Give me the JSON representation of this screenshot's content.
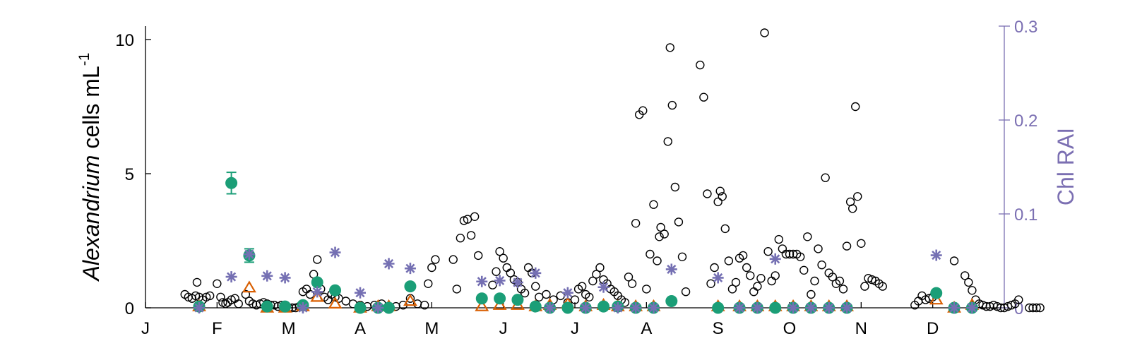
{
  "chart_data": {
    "type": "scatter",
    "title": "",
    "xlabel": "",
    "ylabel": {
      "italic": "Alexandrium",
      "normal": " cells mL",
      "sup": "-1"
    },
    "ylabel_right": "Chl RAI",
    "x_ticks": [
      "J",
      "F",
      "M",
      "A",
      "M",
      "J",
      "J",
      "A",
      "S",
      "O",
      "N",
      "D"
    ],
    "xlim": [
      0,
      12
    ],
    "ylim": [
      0,
      10.5
    ],
    "ylim_right": [
      0,
      0.3
    ],
    "yticks_left": [
      0,
      5,
      10
    ],
    "yticks_right": [
      0,
      0.1,
      0.2,
      0.3
    ],
    "ytick_labels_right": [
      "0",
      "0.1",
      "0.2",
      "0.3"
    ],
    "colors": {
      "circles": "#000000",
      "triangles": "#d95f02",
      "green": "#1b9e77",
      "asterisks": "#7570b3",
      "right_axis": "#7b6fb2"
    },
    "series": [
      {
        "marker": "open-circle",
        "axis": "left",
        "points": [
          [
            0.55,
            0.5
          ],
          [
            0.6,
            0.4
          ],
          [
            0.65,
            0.35
          ],
          [
            0.7,
            0.45
          ],
          [
            0.72,
            0.95
          ],
          [
            0.75,
            0.4
          ],
          [
            0.8,
            0.3
          ],
          [
            0.85,
            0.4
          ],
          [
            0.9,
            0.45
          ],
          [
            1.0,
            0.9
          ],
          [
            1.05,
            0.4
          ],
          [
            1.08,
            0.2
          ],
          [
            1.12,
            0.15
          ],
          [
            1.15,
            0.2
          ],
          [
            1.2,
            0.3
          ],
          [
            1.25,
            0.35
          ],
          [
            1.3,
            0.15
          ],
          [
            1.4,
            0.5
          ],
          [
            1.45,
            0.25
          ],
          [
            1.5,
            0.15
          ],
          [
            1.55,
            0.1
          ],
          [
            1.6,
            0.15
          ],
          [
            1.65,
            0.2
          ],
          [
            1.7,
            0.15
          ],
          [
            1.75,
            0.1
          ],
          [
            1.8,
            0.1
          ],
          [
            1.85,
            0.05
          ],
          [
            1.9,
            0.1
          ],
          [
            1.95,
            0.05
          ],
          [
            2.0,
            0.0
          ],
          [
            2.05,
            0.0
          ],
          [
            2.1,
            0.0
          ],
          [
            2.15,
            0.05
          ],
          [
            2.2,
            0.6
          ],
          [
            2.25,
            0.7
          ],
          [
            2.3,
            0.5
          ],
          [
            2.35,
            1.25
          ],
          [
            2.4,
            1.8
          ],
          [
            2.45,
            0.7
          ],
          [
            2.5,
            0.4
          ],
          [
            2.55,
            0.3
          ],
          [
            2.6,
            0.5
          ],
          [
            2.65,
            0.4
          ],
          [
            2.7,
            0.35
          ],
          [
            2.8,
            0.25
          ],
          [
            2.9,
            0.15
          ],
          [
            3.0,
            0.1
          ],
          [
            3.1,
            0.05
          ],
          [
            3.2,
            0.1
          ],
          [
            3.3,
            0.15
          ],
          [
            3.4,
            0.05
          ],
          [
            3.5,
            0.05
          ],
          [
            3.6,
            0.1
          ],
          [
            3.7,
            0.35
          ],
          [
            3.8,
            0.15
          ],
          [
            3.9,
            0.1
          ],
          [
            3.95,
            0.9
          ],
          [
            4.0,
            1.5
          ],
          [
            4.05,
            1.8
          ],
          [
            4.3,
            1.8
          ],
          [
            4.35,
            0.7
          ],
          [
            4.4,
            2.6
          ],
          [
            4.45,
            3.25
          ],
          [
            4.5,
            3.3
          ],
          [
            4.55,
            2.7
          ],
          [
            4.6,
            3.4
          ],
          [
            4.65,
            1.95
          ],
          [
            4.7,
            0.4
          ],
          [
            4.85,
            0.85
          ],
          [
            4.9,
            1.35
          ],
          [
            4.95,
            2.1
          ],
          [
            5.0,
            1.85
          ],
          [
            5.05,
            1.5
          ],
          [
            5.1,
            1.3
          ],
          [
            5.15,
            1.05
          ],
          [
            5.2,
            0.95
          ],
          [
            5.25,
            0.7
          ],
          [
            5.3,
            0.55
          ],
          [
            5.35,
            1.5
          ],
          [
            5.4,
            1.3
          ],
          [
            5.45,
            0.8
          ],
          [
            5.5,
            0.4
          ],
          [
            5.6,
            0.5
          ],
          [
            5.7,
            0.3
          ],
          [
            5.8,
            0.45
          ],
          [
            5.9,
            0.2
          ],
          [
            6.0,
            0.3
          ],
          [
            6.05,
            0.7
          ],
          [
            6.1,
            0.8
          ],
          [
            6.15,
            0.5
          ],
          [
            6.2,
            0.4
          ],
          [
            6.25,
            1.0
          ],
          [
            6.3,
            1.25
          ],
          [
            6.35,
            1.5
          ],
          [
            6.4,
            1.05
          ],
          [
            6.45,
            0.9
          ],
          [
            6.5,
            0.7
          ],
          [
            6.55,
            0.6
          ],
          [
            6.6,
            0.45
          ],
          [
            6.65,
            0.3
          ],
          [
            6.7,
            0.2
          ],
          [
            6.75,
            1.15
          ],
          [
            6.8,
            0.9
          ],
          [
            6.85,
            3.15
          ],
          [
            6.9,
            7.2
          ],
          [
            6.95,
            7.35
          ],
          [
            7.0,
            0.7
          ],
          [
            7.05,
            2.0
          ],
          [
            7.1,
            3.85
          ],
          [
            7.15,
            1.75
          ],
          [
            7.18,
            2.65
          ],
          [
            7.2,
            3.0
          ],
          [
            7.25,
            2.75
          ],
          [
            7.3,
            6.2
          ],
          [
            7.33,
            9.7
          ],
          [
            7.36,
            7.55
          ],
          [
            7.4,
            4.5
          ],
          [
            7.45,
            3.2
          ],
          [
            7.5,
            1.9
          ],
          [
            7.55,
            0.6
          ],
          [
            7.75,
            9.05
          ],
          [
            7.8,
            7.85
          ],
          [
            7.85,
            4.25
          ],
          [
            7.9,
            0.9
          ],
          [
            7.95,
            1.5
          ],
          [
            8.0,
            3.95
          ],
          [
            8.03,
            4.35
          ],
          [
            8.06,
            4.15
          ],
          [
            8.1,
            2.95
          ],
          [
            8.15,
            1.75
          ],
          [
            8.2,
            0.7
          ],
          [
            8.25,
            0.95
          ],
          [
            8.3,
            1.85
          ],
          [
            8.35,
            1.95
          ],
          [
            8.4,
            1.5
          ],
          [
            8.45,
            1.2
          ],
          [
            8.5,
            0.6
          ],
          [
            8.55,
            0.8
          ],
          [
            8.6,
            1.1
          ],
          [
            8.65,
            10.25
          ],
          [
            8.7,
            2.1
          ],
          [
            8.75,
            1.0
          ],
          [
            8.8,
            1.2
          ],
          [
            8.85,
            2.55
          ],
          [
            8.9,
            2.2
          ],
          [
            8.95,
            2.0
          ],
          [
            9.0,
            2.0
          ],
          [
            9.05,
            2.0
          ],
          [
            9.1,
            2.0
          ],
          [
            9.15,
            1.9
          ],
          [
            9.2,
            1.4
          ],
          [
            9.25,
            2.65
          ],
          [
            9.3,
            0.5
          ],
          [
            9.35,
            1.0
          ],
          [
            9.4,
            2.2
          ],
          [
            9.45,
            1.6
          ],
          [
            9.5,
            4.85
          ],
          [
            9.55,
            1.3
          ],
          [
            9.6,
            1.15
          ],
          [
            9.65,
            0.9
          ],
          [
            9.7,
            1.0
          ],
          [
            9.75,
            0.7
          ],
          [
            9.8,
            2.3
          ],
          [
            9.85,
            3.95
          ],
          [
            9.88,
            3.7
          ],
          [
            9.92,
            7.5
          ],
          [
            9.95,
            4.15
          ],
          [
            10.0,
            2.4
          ],
          [
            10.05,
            0.8
          ],
          [
            10.1,
            1.1
          ],
          [
            10.15,
            1.05
          ],
          [
            10.2,
            1.0
          ],
          [
            10.25,
            0.9
          ],
          [
            10.3,
            0.8
          ],
          [
            10.75,
            0.1
          ],
          [
            10.8,
            0.25
          ],
          [
            10.85,
            0.45
          ],
          [
            10.9,
            0.3
          ],
          [
            10.95,
            0.35
          ],
          [
            11.0,
            0.4
          ],
          [
            11.3,
            1.75
          ],
          [
            11.45,
            1.2
          ],
          [
            11.5,
            0.95
          ],
          [
            11.55,
            0.65
          ],
          [
            11.6,
            0.3
          ],
          [
            11.65,
            0.15
          ],
          [
            11.7,
            0.1
          ],
          [
            11.75,
            0.05
          ],
          [
            11.8,
            0.05
          ],
          [
            11.85,
            0.1
          ],
          [
            11.9,
            0.05
          ],
          [
            11.95,
            0.0
          ],
          [
            12.0,
            0.0
          ],
          [
            12.05,
            0.05
          ],
          [
            12.1,
            0.1
          ],
          [
            12.15,
            0.15
          ],
          [
            12.2,
            0.3
          ],
          [
            12.35,
            0.0
          ],
          [
            12.4,
            0.0
          ],
          [
            12.45,
            0.0
          ],
          [
            12.5,
            0.0
          ]
        ]
      },
      {
        "marker": "open-triangle",
        "axis": "left",
        "points": [
          [
            0.75,
            0.05
          ],
          [
            1.45,
            0.75
          ],
          [
            1.7,
            0.0
          ],
          [
            1.95,
            0.0
          ],
          [
            2.2,
            0.05
          ],
          [
            2.4,
            0.4
          ],
          [
            2.65,
            0.15
          ],
          [
            3.0,
            0.0
          ],
          [
            3.25,
            0.05
          ],
          [
            3.4,
            0.05
          ],
          [
            3.7,
            0.25
          ],
          [
            4.7,
            0.05
          ],
          [
            4.95,
            0.1
          ],
          [
            5.2,
            0.1
          ],
          [
            5.45,
            0.05
          ],
          [
            5.65,
            0.1
          ],
          [
            5.9,
            0.15
          ],
          [
            6.15,
            0.05
          ],
          [
            6.4,
            0.1
          ],
          [
            6.6,
            0.05
          ],
          [
            6.85,
            0.05
          ],
          [
            7.1,
            0.05
          ],
          [
            8.0,
            0.05
          ],
          [
            8.3,
            0.05
          ],
          [
            8.55,
            0.05
          ],
          [
            8.8,
            0.05
          ],
          [
            9.05,
            0.05
          ],
          [
            9.3,
            0.05
          ],
          [
            9.55,
            0.05
          ],
          [
            9.8,
            0.05
          ],
          [
            11.05,
            0.3
          ],
          [
            11.3,
            0.0
          ],
          [
            11.55,
            0.1
          ]
        ]
      },
      {
        "marker": "filled-circle",
        "axis": "left",
        "points": [
          [
            0.75,
            0.05
          ],
          [
            1.2,
            4.65
          ],
          [
            1.45,
            1.95
          ],
          [
            1.7,
            0.05
          ],
          [
            1.95,
            0.05
          ],
          [
            2.2,
            0.1
          ],
          [
            2.4,
            0.95
          ],
          [
            2.65,
            0.65
          ],
          [
            3.0,
            0.0
          ],
          [
            3.25,
            0.0
          ],
          [
            3.4,
            0.0
          ],
          [
            3.7,
            0.8
          ],
          [
            4.7,
            0.35
          ],
          [
            4.95,
            0.35
          ],
          [
            5.2,
            0.3
          ],
          [
            5.45,
            0.05
          ],
          [
            5.65,
            0.0
          ],
          [
            5.9,
            0.0
          ],
          [
            6.15,
            0.0
          ],
          [
            6.4,
            0.05
          ],
          [
            6.6,
            0.05
          ],
          [
            6.85,
            0.0
          ],
          [
            7.1,
            0.0
          ],
          [
            7.35,
            0.25
          ],
          [
            8.0,
            0.0
          ],
          [
            8.3,
            0.0
          ],
          [
            8.55,
            0.0
          ],
          [
            8.8,
            0.0
          ],
          [
            9.05,
            0.0
          ],
          [
            9.3,
            0.0
          ],
          [
            9.55,
            0.0
          ],
          [
            9.8,
            0.0
          ],
          [
            11.05,
            0.55
          ],
          [
            11.3,
            0.0
          ],
          [
            11.55,
            0.0
          ]
        ],
        "errors": [
          [
            1.2,
            0.4
          ],
          [
            1.45,
            0.25
          ]
        ]
      },
      {
        "marker": "asterisk",
        "axis": "right",
        "points": [
          [
            0.75,
            0.0
          ],
          [
            1.2,
            0.033
          ],
          [
            1.45,
            0.057
          ],
          [
            1.7,
            0.034
          ],
          [
            1.95,
            0.032
          ],
          [
            2.2,
            0.0
          ],
          [
            2.4,
            0.017
          ],
          [
            2.65,
            0.059
          ],
          [
            3.0,
            0.016
          ],
          [
            3.25,
            0.0
          ],
          [
            3.4,
            0.047
          ],
          [
            3.7,
            0.042
          ],
          [
            4.7,
            0.028
          ],
          [
            4.95,
            0.029
          ],
          [
            5.2,
            0.027
          ],
          [
            5.45,
            0.037
          ],
          [
            5.65,
            0.0
          ],
          [
            5.9,
            0.016
          ],
          [
            6.15,
            0.0
          ],
          [
            6.4,
            0.022
          ],
          [
            6.6,
            0.0
          ],
          [
            6.85,
            0.0
          ],
          [
            7.1,
            0.0
          ],
          [
            7.35,
            0.041
          ],
          [
            8.0,
            0.032
          ],
          [
            8.3,
            0.0
          ],
          [
            8.55,
            0.0
          ],
          [
            8.8,
            0.052
          ],
          [
            9.05,
            0.0
          ],
          [
            9.3,
            0.0
          ],
          [
            9.55,
            0.0
          ],
          [
            9.8,
            0.0
          ],
          [
            11.05,
            0.056
          ],
          [
            11.3,
            0.0
          ],
          [
            11.55,
            0.0
          ]
        ]
      }
    ]
  }
}
